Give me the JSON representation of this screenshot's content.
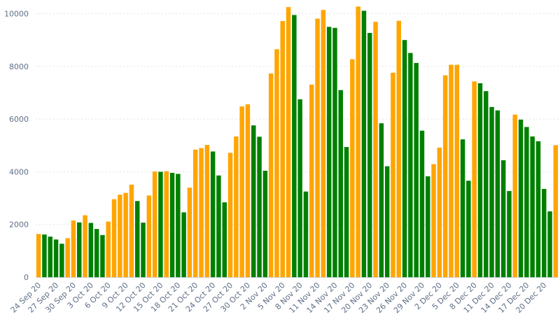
{
  "colors": {
    "increase": "#ffa500",
    "decrease": "#008000",
    "grid": "#e3e3e3",
    "label": "#5f6f86"
  },
  "chart_data": {
    "type": "bar",
    "title": "",
    "xlabel": "",
    "ylabel": "",
    "ylim": [
      0,
      10200
    ],
    "yticks": [
      0,
      2000,
      4000,
      6000,
      8000,
      10000
    ],
    "grid": true,
    "legend": "none",
    "x_tick_labels": [
      "24 Sep 20",
      "27 Sep 20",
      "30 Sep 20",
      "3 Oct 20",
      "6 Oct 20",
      "9 Oct 20",
      "12 Oct 20",
      "15 Oct 20",
      "18 Oct 20",
      "21 Oct 20",
      "24 Oct 20",
      "27 Oct 20",
      "30 Oct 20",
      "2 Nov 20",
      "5 Nov 20",
      "8 Nov 20",
      "11 Nov 20",
      "14 Nov 20",
      "17 Nov 20",
      "20 Nov 20",
      "23 Nov 20",
      "26 Nov 20",
      "29 Nov 20",
      "2 Dec 20",
      "5 Dec 20",
      "8 Dec 20",
      "11 Dec 20",
      "14 Dec 20",
      "17 Dec 20",
      "20 Dec 20"
    ],
    "bars": [
      {
        "value": 1640,
        "color": "increase"
      },
      {
        "value": 1620,
        "color": "decrease"
      },
      {
        "value": 1540,
        "color": "decrease"
      },
      {
        "value": 1430,
        "color": "decrease"
      },
      {
        "value": 1270,
        "color": "decrease"
      },
      {
        "value": 1480,
        "color": "increase"
      },
      {
        "value": 2150,
        "color": "increase"
      },
      {
        "value": 2080,
        "color": "decrease"
      },
      {
        "value": 2350,
        "color": "increase"
      },
      {
        "value": 2060,
        "color": "decrease"
      },
      {
        "value": 1830,
        "color": "decrease"
      },
      {
        "value": 1600,
        "color": "decrease"
      },
      {
        "value": 2110,
        "color": "increase"
      },
      {
        "value": 2960,
        "color": "increase"
      },
      {
        "value": 3130,
        "color": "increase"
      },
      {
        "value": 3200,
        "color": "increase"
      },
      {
        "value": 3510,
        "color": "increase"
      },
      {
        "value": 2890,
        "color": "decrease"
      },
      {
        "value": 2070,
        "color": "decrease"
      },
      {
        "value": 3100,
        "color": "increase"
      },
      {
        "value": 4010,
        "color": "increase"
      },
      {
        "value": 4000,
        "color": "decrease"
      },
      {
        "value": 4020,
        "color": "increase"
      },
      {
        "value": 3960,
        "color": "decrease"
      },
      {
        "value": 3920,
        "color": "decrease"
      },
      {
        "value": 2460,
        "color": "decrease"
      },
      {
        "value": 3400,
        "color": "increase"
      },
      {
        "value": 4840,
        "color": "increase"
      },
      {
        "value": 4900,
        "color": "increase"
      },
      {
        "value": 5020,
        "color": "increase"
      },
      {
        "value": 4770,
        "color": "decrease"
      },
      {
        "value": 3860,
        "color": "decrease"
      },
      {
        "value": 2840,
        "color": "decrease"
      },
      {
        "value": 4720,
        "color": "increase"
      },
      {
        "value": 5340,
        "color": "increase"
      },
      {
        "value": 6480,
        "color": "increase"
      },
      {
        "value": 6560,
        "color": "increase"
      },
      {
        "value": 5760,
        "color": "decrease"
      },
      {
        "value": 5330,
        "color": "decrease"
      },
      {
        "value": 4040,
        "color": "decrease"
      },
      {
        "value": 7730,
        "color": "increase"
      },
      {
        "value": 8650,
        "color": "increase"
      },
      {
        "value": 9720,
        "color": "increase"
      },
      {
        "value": 10250,
        "color": "increase"
      },
      {
        "value": 9950,
        "color": "decrease"
      },
      {
        "value": 6750,
        "color": "decrease"
      },
      {
        "value": 3250,
        "color": "decrease"
      },
      {
        "value": 7310,
        "color": "increase"
      },
      {
        "value": 9810,
        "color": "increase"
      },
      {
        "value": 10140,
        "color": "increase"
      },
      {
        "value": 9500,
        "color": "decrease"
      },
      {
        "value": 9460,
        "color": "decrease"
      },
      {
        "value": 7100,
        "color": "decrease"
      },
      {
        "value": 4940,
        "color": "decrease"
      },
      {
        "value": 8270,
        "color": "increase"
      },
      {
        "value": 10270,
        "color": "increase"
      },
      {
        "value": 10110,
        "color": "decrease"
      },
      {
        "value": 9270,
        "color": "decrease"
      },
      {
        "value": 9690,
        "color": "increase"
      },
      {
        "value": 5840,
        "color": "decrease"
      },
      {
        "value": 4210,
        "color": "decrease"
      },
      {
        "value": 7760,
        "color": "increase"
      },
      {
        "value": 9730,
        "color": "increase"
      },
      {
        "value": 9000,
        "color": "decrease"
      },
      {
        "value": 8510,
        "color": "decrease"
      },
      {
        "value": 8130,
        "color": "decrease"
      },
      {
        "value": 5560,
        "color": "decrease"
      },
      {
        "value": 3830,
        "color": "decrease"
      },
      {
        "value": 4290,
        "color": "increase"
      },
      {
        "value": 4920,
        "color": "increase"
      },
      {
        "value": 7660,
        "color": "increase"
      },
      {
        "value": 8060,
        "color": "increase"
      },
      {
        "value": 8060,
        "color": "increase"
      },
      {
        "value": 5230,
        "color": "decrease"
      },
      {
        "value": 3660,
        "color": "decrease"
      },
      {
        "value": 7430,
        "color": "increase"
      },
      {
        "value": 7360,
        "color": "decrease"
      },
      {
        "value": 7060,
        "color": "decrease"
      },
      {
        "value": 6460,
        "color": "decrease"
      },
      {
        "value": 6330,
        "color": "decrease"
      },
      {
        "value": 4440,
        "color": "decrease"
      },
      {
        "value": 3270,
        "color": "decrease"
      },
      {
        "value": 6170,
        "color": "increase"
      },
      {
        "value": 5980,
        "color": "decrease"
      },
      {
        "value": 5700,
        "color": "decrease"
      },
      {
        "value": 5340,
        "color": "decrease"
      },
      {
        "value": 5160,
        "color": "decrease"
      },
      {
        "value": 3350,
        "color": "decrease"
      },
      {
        "value": 2500,
        "color": "decrease"
      },
      {
        "value": 5010,
        "color": "increase"
      }
    ]
  }
}
